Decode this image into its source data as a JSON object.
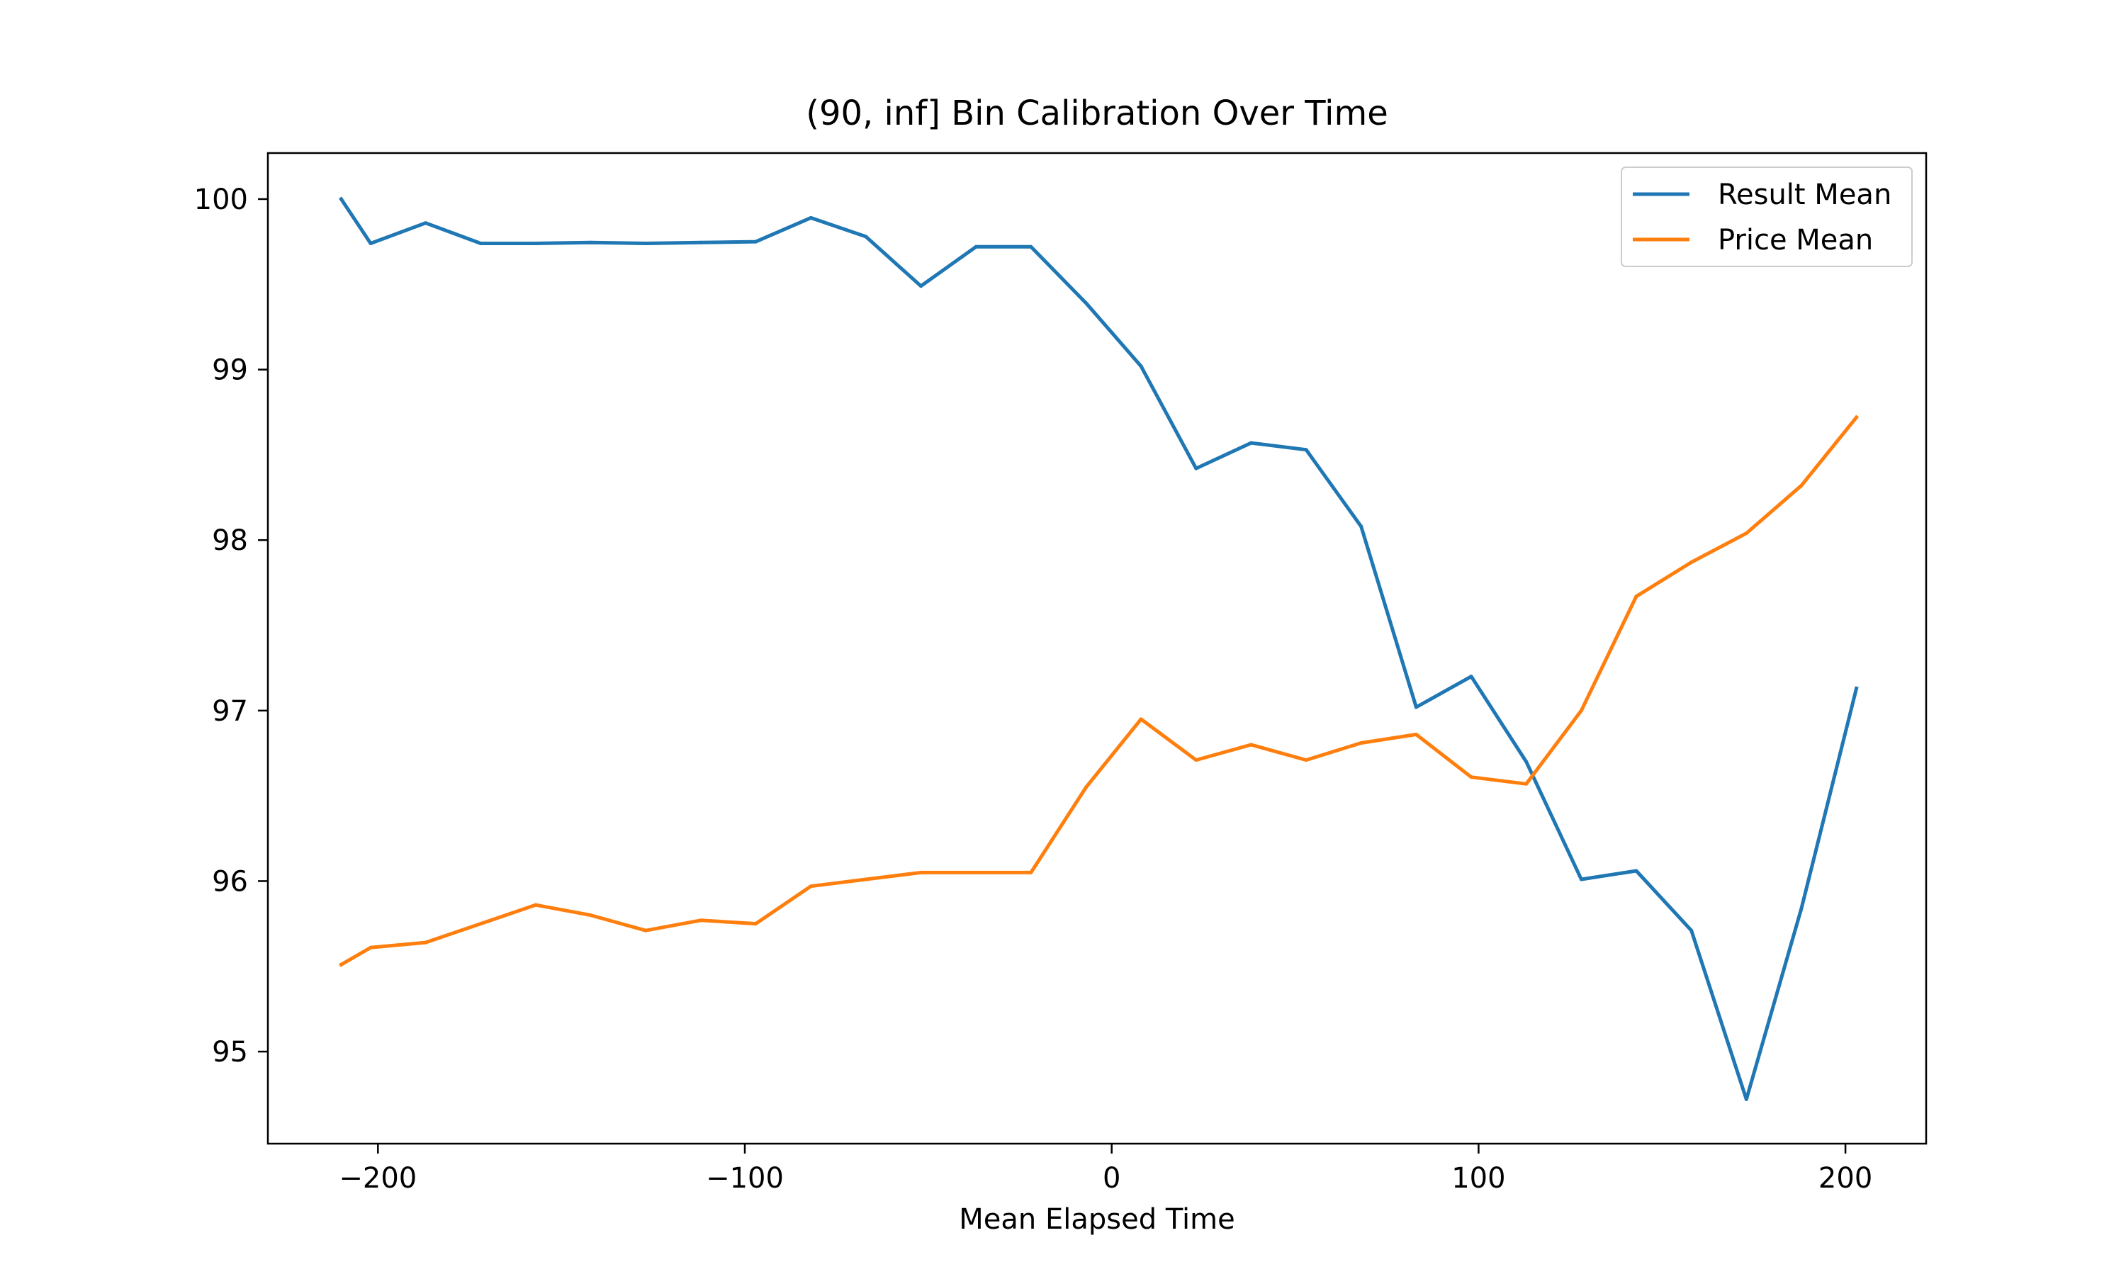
{
  "chart_data": {
    "type": "line",
    "title": "(90, inf] Bin Calibration Over Time",
    "xlabel": "Mean Elapsed Time",
    "ylabel": "",
    "xlim": [
      -230,
      222
    ],
    "ylim": [
      94.46,
      100.27
    ],
    "x_ticks": [
      -200,
      -100,
      0,
      100,
      200
    ],
    "x_tick_labels": [
      "−200",
      "−100",
      "0",
      "100",
      "200"
    ],
    "y_ticks": [
      95,
      96,
      97,
      98,
      99,
      100
    ],
    "y_tick_labels": [
      "95",
      "96",
      "97",
      "98",
      "99",
      "100"
    ],
    "grid": false,
    "legend_position": "upper right",
    "x": [
      -210,
      -202,
      -187,
      -172,
      -157,
      -142,
      -127,
      -112,
      -97,
      -82,
      -67,
      -52,
      -37,
      -22,
      -7,
      8,
      23,
      38,
      53,
      68,
      83,
      98,
      113,
      128,
      143,
      158,
      173,
      188,
      203
    ],
    "series": [
      {
        "name": "Result Mean",
        "color": "#1f77b4",
        "values": [
          100.0,
          99.74,
          99.86,
          99.74,
          99.74,
          99.745,
          99.74,
          99.745,
          99.75,
          99.89,
          99.78,
          99.49,
          99.72,
          99.72,
          99.39,
          99.02,
          98.42,
          98.57,
          98.53,
          98.08,
          97.02,
          97.2,
          96.7,
          96.01,
          96.06,
          95.71,
          94.72,
          95.84,
          97.13
        ]
      },
      {
        "name": "Price Mean",
        "color": "#ff7f0e",
        "values": [
          95.51,
          95.61,
          95.64,
          95.75,
          95.86,
          95.8,
          95.71,
          95.77,
          95.75,
          95.97,
          96.01,
          96.05,
          96.05,
          96.05,
          96.55,
          96.95,
          96.71,
          96.8,
          96.71,
          96.81,
          96.86,
          96.61,
          96.57,
          97.0,
          97.67,
          97.87,
          98.04,
          98.32,
          98.72
        ]
      }
    ]
  }
}
